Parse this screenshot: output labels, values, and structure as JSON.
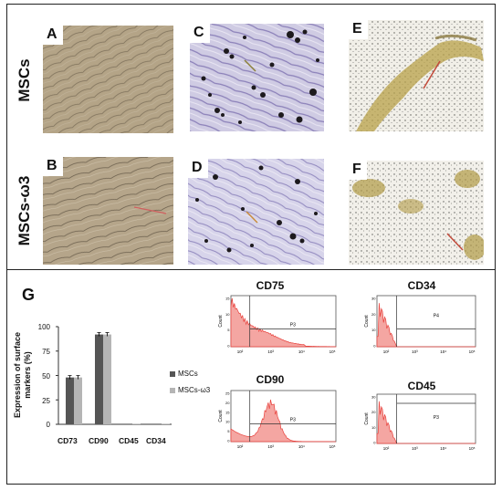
{
  "rows": [
    "MSCs",
    "MSCs-ω3"
  ],
  "panels": [
    "A",
    "B",
    "C",
    "D",
    "E",
    "F"
  ],
  "panel_g_label": "G",
  "chart_data": [
    {
      "type": "bar",
      "ylabel": "Expression of surface markers (%)",
      "categories": [
        "CD73",
        "CD90",
        "CD45",
        "CD34"
      ],
      "yticks": [
        0,
        25,
        50,
        75,
        100
      ],
      "ylim": [
        0,
        100
      ],
      "series": [
        {
          "name": "MSCs",
          "values": [
            48,
            92,
            0.5,
            0.3
          ],
          "color": "#555555"
        },
        {
          "name": "MSCs-ω3",
          "values": [
            48,
            92,
            0.5,
            0.3
          ],
          "color": "#b5b5b5"
        }
      ],
      "legend_placement": "right"
    }
  ],
  "flow": [
    {
      "title": "CD75",
      "gate": "P3",
      "ylabel": "Count",
      "xticks": [
        "10²",
        "10³",
        "10⁴",
        "10⁵"
      ],
      "yticks": [
        "15",
        "10",
        "5",
        "0"
      ]
    },
    {
      "title": "CD34",
      "gate": "P4",
      "ylabel": "Count",
      "xticks": [
        "10²",
        "10³",
        "10⁴",
        "10⁵"
      ],
      "yticks": [
        "30",
        "20",
        "10",
        "0"
      ]
    },
    {
      "title": "CD90",
      "gate": "P3",
      "ylabel": "Count",
      "xticks": [
        "10²",
        "10³",
        "10⁴",
        "10⁵"
      ],
      "yticks": [
        "25",
        "20",
        "15",
        "10",
        "5",
        "0"
      ]
    },
    {
      "title": "CD45",
      "gate": "P3",
      "ylabel": "Count",
      "xticks": [
        "10²",
        "10³",
        "10⁴",
        "10⁵"
      ],
      "yticks": [
        "30",
        "20",
        "10",
        "0"
      ]
    }
  ],
  "colors": {
    "hist_red": "#e8413c",
    "hist_fill": "#f4a6a2",
    "olive": "#8b7f3a"
  }
}
